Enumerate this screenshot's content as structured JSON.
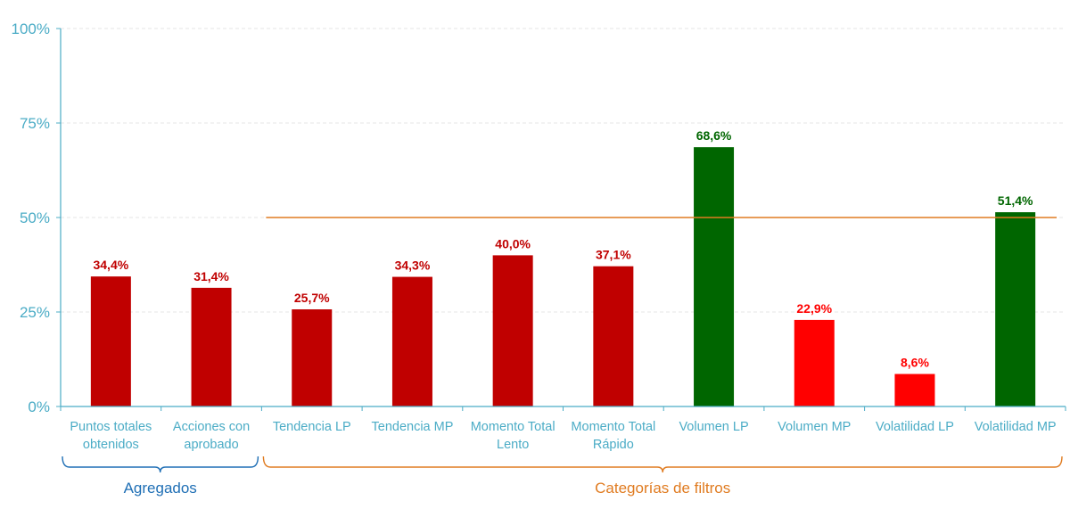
{
  "chart_data": {
    "type": "bar",
    "title": "",
    "xlabel": "",
    "ylabel": "",
    "ylim": [
      0,
      100
    ],
    "y_ticks": [
      "0%",
      "25%",
      "50%",
      "75%",
      "100%"
    ],
    "y_tick_values": [
      0,
      25,
      50,
      75,
      100
    ],
    "grid": "horizontal dashed",
    "categories": [
      [
        "Puntos totales",
        "obtenidos"
      ],
      [
        "Acciones con",
        "aprobado"
      ],
      [
        "Tendencia LP"
      ],
      [
        "Tendencia MP"
      ],
      [
        "Momento Total",
        "Lento"
      ],
      [
        "Momento Total",
        "Rápido"
      ],
      [
        "Volumen LP"
      ],
      [
        "Volumen MP"
      ],
      [
        "Volatilidad LP"
      ],
      [
        "Volatilidad MP"
      ]
    ],
    "values": [
      34.4,
      31.4,
      25.7,
      34.3,
      40.0,
      37.1,
      68.6,
      22.9,
      8.6,
      51.4
    ],
    "data_labels": [
      "34,4%",
      "31,4%",
      "25,7%",
      "34,3%",
      "40,0%",
      "37,1%",
      "68,6%",
      "22,9%",
      "8,6%",
      "51,4%"
    ],
    "bar_colors": [
      "#c00000",
      "#c00000",
      "#c00000",
      "#c00000",
      "#c00000",
      "#c00000",
      "#006600",
      "#ff0000",
      "#ff0000",
      "#006600"
    ],
    "label_colors": [
      "#c00000",
      "#c00000",
      "#c00000",
      "#c00000",
      "#c00000",
      "#c00000",
      "#006600",
      "#ff0000",
      "#ff0000",
      "#006600"
    ],
    "reference_line": {
      "value": 50,
      "from_category": 2,
      "to_category": 9,
      "color": "#e07b20"
    },
    "groups": [
      {
        "label": "Agregados",
        "from": 0,
        "to": 1,
        "color": "#1f6fb5"
      },
      {
        "label": "Categorías de filtros",
        "from": 2,
        "to": 9,
        "color": "#e07b20"
      }
    ],
    "axis_color": "#4bacc6"
  }
}
